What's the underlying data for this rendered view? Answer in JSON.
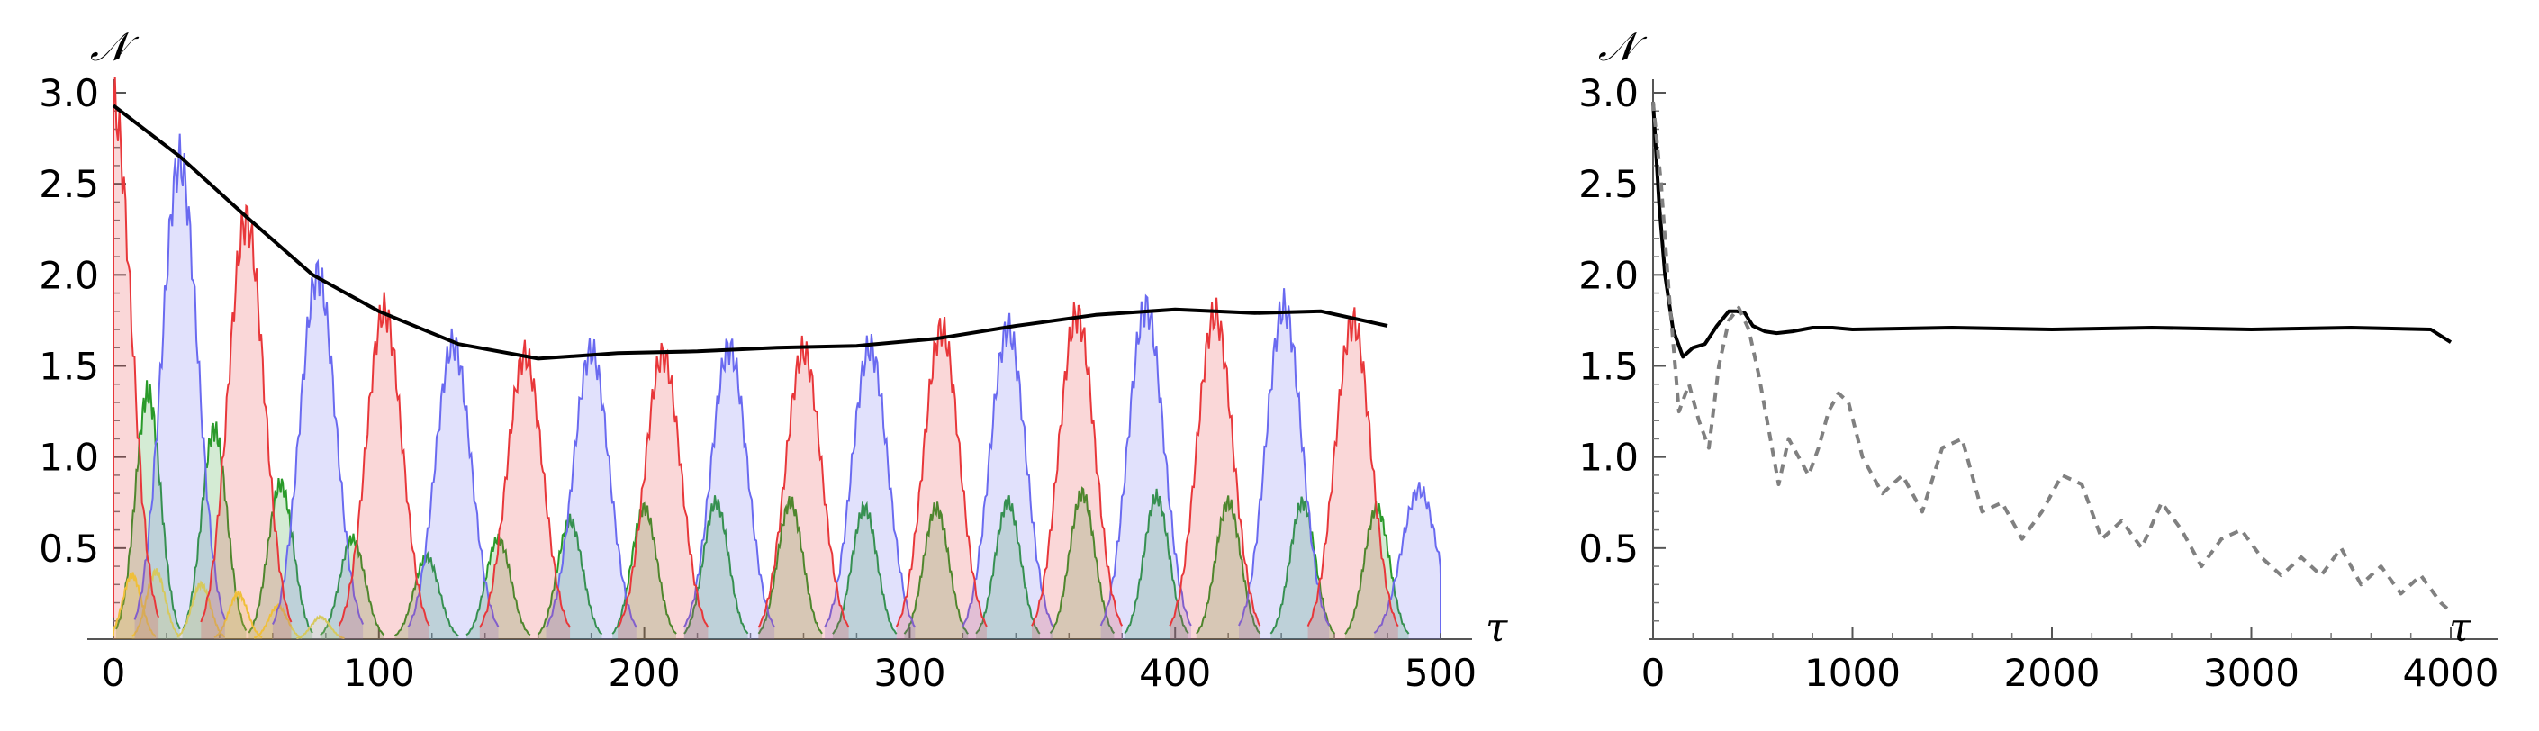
{
  "chart_data": [
    {
      "type": "area",
      "ylabel": "𝒩",
      "xlabel": "τ",
      "xlim": [
        0,
        500
      ],
      "ylim": [
        0,
        3.0
      ],
      "x_ticks": [
        0,
        100,
        200,
        300,
        400,
        500
      ],
      "y_ticks": [
        0.5,
        1.0,
        1.5,
        2.0,
        2.5,
        3.0
      ],
      "y_tick_labels": [
        "0.5",
        "1.0",
        "1.5",
        "2.0",
        "2.5",
        "3.0"
      ],
      "grid": false,
      "colors": {
        "red": "#e8373a",
        "blue": "#6a6af0",
        "green": "#2a9a2a",
        "yellow": "#f2e23a",
        "envelope": "#000000"
      },
      "envelope": {
        "x": [
          0,
          25,
          50,
          75,
          100,
          130,
          160,
          190,
          220,
          250,
          280,
          310,
          340,
          370,
          400,
          430,
          455,
          480
        ],
        "y": [
          2.93,
          2.65,
          2.32,
          2.0,
          1.8,
          1.62,
          1.54,
          1.57,
          1.58,
          1.6,
          1.61,
          1.65,
          1.72,
          1.78,
          1.81,
          1.79,
          1.8,
          1.72
        ]
      },
      "peaks": {
        "red": {
          "x": [
            0,
            50,
            102,
            155,
            207,
            260,
            312,
            363,
            415,
            467
          ],
          "y": [
            2.93,
            2.3,
            1.8,
            1.56,
            1.56,
            1.58,
            1.7,
            1.78,
            1.78,
            1.74
          ]
        },
        "blue": {
          "x": [
            25,
            77,
            128,
            180,
            232,
            285,
            337,
            389,
            441,
            492
          ],
          "y": [
            2.62,
            2.0,
            1.62,
            1.58,
            1.6,
            1.6,
            1.7,
            1.82,
            1.82,
            0.82
          ]
        },
        "green": {
          "x": [
            13,
            38,
            63,
            90,
            118,
            145,
            172,
            200,
            227,
            255,
            283,
            310,
            337,
            365,
            393,
            420,
            448,
            476
          ],
          "y": [
            1.35,
            1.15,
            0.85,
            0.55,
            0.45,
            0.55,
            0.65,
            0.72,
            0.75,
            0.75,
            0.72,
            0.72,
            0.75,
            0.8,
            0.78,
            0.75,
            0.75,
            0.72
          ]
        },
        "yellow": {
          "x": [
            7,
            16,
            33,
            47,
            62,
            78
          ],
          "y": [
            0.35,
            0.37,
            0.3,
            0.25,
            0.18,
            0.12
          ]
        }
      }
    },
    {
      "type": "line",
      "ylabel": "𝒩",
      "xlabel": "τ",
      "xlim": [
        0,
        4000
      ],
      "ylim": [
        0,
        3.0
      ],
      "x_ticks": [
        0,
        1000,
        2000,
        3000,
        4000
      ],
      "y_ticks": [
        0.5,
        1.0,
        1.5,
        2.0,
        2.5,
        3.0
      ],
      "y_tick_labels": [
        "0.5",
        "1.0",
        "1.5",
        "2.0",
        "2.5",
        "3.0"
      ],
      "grid": false,
      "series": [
        {
          "style": "solid",
          "color": "#000000",
          "x": [
            0,
            30,
            60,
            100,
            150,
            200,
            260,
            320,
            380,
            420,
            460,
            500,
            560,
            620,
            700,
            800,
            900,
            1000,
            1500,
            2000,
            2500,
            3000,
            3500,
            3900,
            4000
          ],
          "y": [
            2.95,
            2.4,
            2.0,
            1.7,
            1.55,
            1.6,
            1.62,
            1.72,
            1.8,
            1.8,
            1.79,
            1.72,
            1.69,
            1.68,
            1.69,
            1.71,
            1.71,
            1.7,
            1.71,
            1.7,
            1.71,
            1.7,
            1.71,
            1.7,
            1.63
          ]
        },
        {
          "style": "dashed",
          "color": "#808080",
          "x": [
            0,
            40,
            80,
            130,
            180,
            230,
            280,
            330,
            380,
            430,
            480,
            530,
            580,
            630,
            680,
            730,
            780,
            830,
            880,
            930,
            980,
            1050,
            1150,
            1250,
            1350,
            1450,
            1550,
            1650,
            1750,
            1850,
            1950,
            2050,
            2150,
            2250,
            2350,
            2450,
            2550,
            2650,
            2750,
            2850,
            2950,
            3050,
            3150,
            3250,
            3350,
            3450,
            3550,
            3650,
            3750,
            3850,
            3950,
            4000
          ],
          "y": [
            2.95,
            2.5,
            1.9,
            1.25,
            1.4,
            1.2,
            1.05,
            1.5,
            1.75,
            1.82,
            1.7,
            1.45,
            1.15,
            0.85,
            1.1,
            1.0,
            0.9,
            1.05,
            1.25,
            1.35,
            1.3,
            1.0,
            0.8,
            0.9,
            0.7,
            1.05,
            1.1,
            0.7,
            0.75,
            0.55,
            0.7,
            0.9,
            0.85,
            0.55,
            0.65,
            0.5,
            0.75,
            0.6,
            0.4,
            0.55,
            0.6,
            0.45,
            0.35,
            0.45,
            0.35,
            0.5,
            0.3,
            0.4,
            0.25,
            0.35,
            0.2,
            0.15
          ]
        }
      ]
    }
  ]
}
